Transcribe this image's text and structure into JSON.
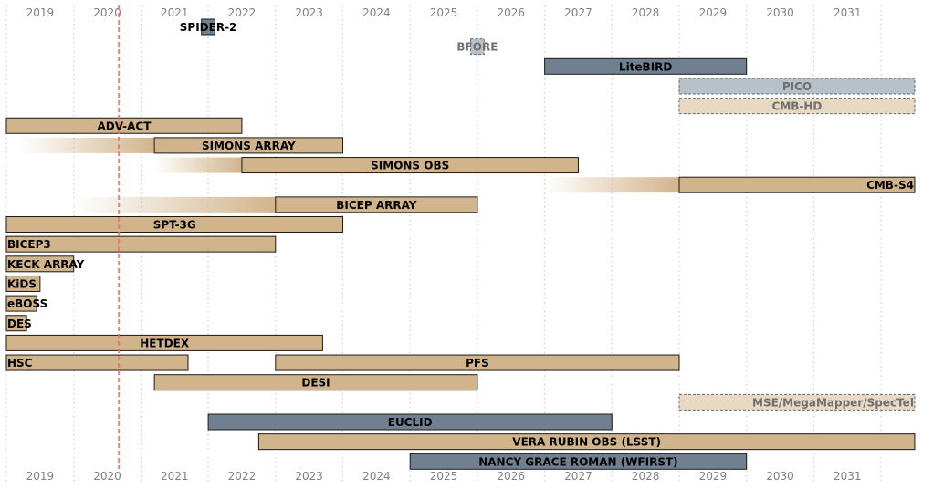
{
  "chart_data": {
    "type": "timeline",
    "title": "",
    "xlabel": "",
    "ylabel": "",
    "x_range": [
      2018.5,
      2032.2
    ],
    "ticks": [
      "2019",
      "2020",
      "2021",
      "2022",
      "2023",
      "2024",
      "2025",
      "2026",
      "2027",
      "2028",
      "2029",
      "2030",
      "2031"
    ],
    "tick_positions": "top-and-bottom",
    "grid": "vertical dotted at half-years",
    "marker": {
      "x": 2020.17,
      "color": "#f07060",
      "style": "dashed"
    },
    "colors": {
      "ground": "#d2b48c",
      "space": "#708090",
      "future_ground": "#e8d9c4",
      "future_space": "#b7c1c9",
      "future_text": "#6f6f6f"
    },
    "bars": [
      {
        "label": "SPIDER-2",
        "start": 2021.4,
        "end": 2021.6,
        "kind": "space",
        "label_pos": "center"
      },
      {
        "label": "BFORE",
        "start": 2025.4,
        "end": 2025.6,
        "kind": "future_space",
        "label_pos": "center"
      },
      {
        "label": "LiteBIRD",
        "start": 2026.5,
        "end": 2029.5,
        "kind": "space",
        "label_pos": "center"
      },
      {
        "label": "PICO",
        "start": 2028.5,
        "end": 2032.0,
        "kind": "future_space",
        "label_pos": "center"
      },
      {
        "label": "CMB-HD",
        "start": 2028.5,
        "end": 2032.0,
        "kind": "future_ground",
        "label_pos": "center"
      },
      {
        "label": "ADV-ACT",
        "start": 2018.5,
        "end": 2022.0,
        "kind": "ground",
        "label_pos": "center"
      },
      {
        "label": "SIMONS ARRAY",
        "start": 2020.7,
        "end": 2023.5,
        "kind": "ground",
        "label_pos": "center",
        "fade_from": 2018.7
      },
      {
        "label": "SIMONS OBS",
        "start": 2022.0,
        "end": 2027.0,
        "kind": "ground",
        "label_pos": "center",
        "fade_from": 2020.7
      },
      {
        "label": "CMB-S4",
        "start": 2028.5,
        "end": 2032.0,
        "kind": "ground",
        "label_pos": "end",
        "fade_from": 2026.5
      },
      {
        "label": "BICEP ARRAY",
        "start": 2022.5,
        "end": 2025.5,
        "kind": "ground",
        "label_pos": "center",
        "fade_from": 2019.5
      },
      {
        "label": "SPT-3G",
        "start": 2018.5,
        "end": 2023.5,
        "kind": "ground",
        "label_pos": "center"
      },
      {
        "label": "BICEP3",
        "start": 2018.5,
        "end": 2022.5,
        "kind": "ground",
        "label_pos": "start"
      },
      {
        "label": "KECK ARRAY",
        "start": 2018.5,
        "end": 2019.5,
        "kind": "ground",
        "label_pos": "start"
      },
      {
        "label": "KiDS",
        "start": 2018.5,
        "end": 2019.0,
        "kind": "ground",
        "label_pos": "start"
      },
      {
        "label": "eBOSS",
        "start": 2018.5,
        "end": 2018.95,
        "kind": "ground",
        "label_pos": "start"
      },
      {
        "label": "DES",
        "start": 2018.5,
        "end": 2018.8,
        "kind": "ground",
        "label_pos": "start"
      },
      {
        "label": "HETDEX",
        "start": 2018.5,
        "end": 2023.2,
        "kind": "ground",
        "label_pos": "center"
      },
      {
        "label": "HSC",
        "start": 2018.5,
        "end": 2021.2,
        "kind": "ground",
        "label_pos": "start",
        "row": "hsc-pfs"
      },
      {
        "label": "PFS",
        "start": 2022.5,
        "end": 2028.5,
        "kind": "ground",
        "label_pos": "center",
        "row": "hsc-pfs"
      },
      {
        "label": "DESI",
        "start": 2020.7,
        "end": 2025.5,
        "kind": "ground",
        "label_pos": "center"
      },
      {
        "label": "MSE/MegaMapper/SpecTel",
        "start": 2028.5,
        "end": 2032.0,
        "kind": "future_ground",
        "label_pos": "end"
      },
      {
        "label": "EUCLID",
        "start": 2021.5,
        "end": 2027.5,
        "kind": "space",
        "label_pos": "center"
      },
      {
        "label": "VERA RUBIN OBS (LSST)",
        "start": 2022.25,
        "end": 2032.0,
        "kind": "ground",
        "label_pos": "center"
      },
      {
        "label": "NANCY GRACE ROMAN (WFIRST)",
        "start": 2024.5,
        "end": 2029.5,
        "kind": "space",
        "label_pos": "center"
      }
    ]
  }
}
